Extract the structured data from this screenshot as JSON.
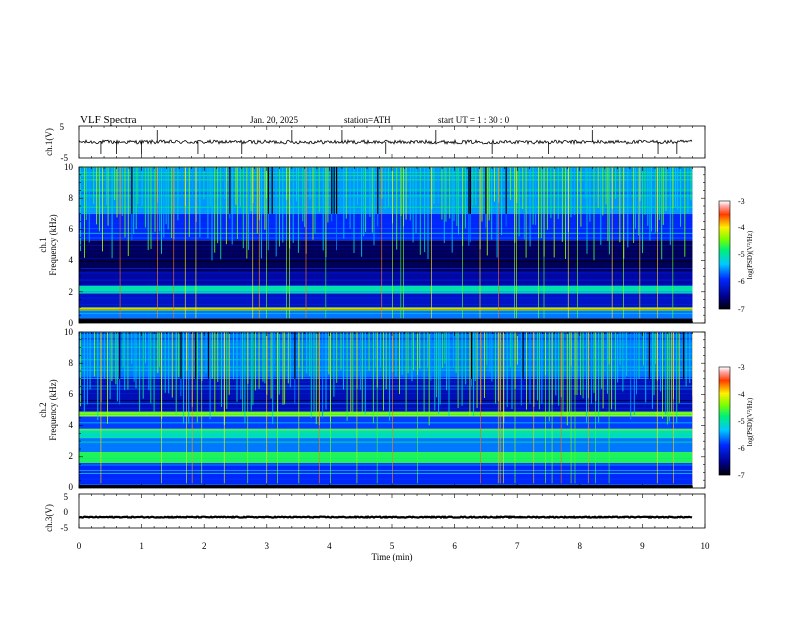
{
  "header": {
    "title": "VLF  Spectra",
    "date": "Jan. 20, 2025",
    "station": "station=ATH",
    "start_ut": "start  UT  =   1 : 30 : 0"
  },
  "chart_data": [
    {
      "type": "line",
      "id": "ch1-waveform",
      "ylabel": "ch.1(V)",
      "ylim": [
        -5,
        5
      ],
      "yticks": [
        "5",
        "-5"
      ],
      "xlim": [
        0,
        10
      ],
      "x_end": 9.8,
      "baseline": 0,
      "noise_amplitude": 0.6,
      "spikes": [
        0.35,
        0.6,
        1.0,
        1.25,
        1.9,
        2.6,
        3.4,
        4.2,
        4.9,
        5.7,
        6.6,
        7.5,
        8.2,
        9.25,
        9.55
      ],
      "color": "#000000"
    },
    {
      "type": "heatmap",
      "id": "ch1-spectrogram",
      "ylabel_top": "ch.1",
      "ylabel": "Frequency  (kHz)",
      "ylim": [
        0,
        10
      ],
      "yticks": [
        "0",
        "2",
        "4",
        "6",
        "8",
        "10"
      ],
      "xlim": [
        0,
        10
      ],
      "x_end": 9.8,
      "colorbar_label": "log(PSD)(V²/Hz)",
      "colorbar_range": [
        -7,
        -3
      ],
      "colorbar_ticks": [
        "-3",
        "-4",
        "-5",
        "-6",
        "-7"
      ],
      "band_levels": [
        {
          "f": [
            0.0,
            0.3
          ],
          "v": -7.0
        },
        {
          "f": [
            0.3,
            0.8
          ],
          "v": -5.6
        },
        {
          "f": [
            0.8,
            1.0
          ],
          "v": -4.3
        },
        {
          "f": [
            1.0,
            1.9
          ],
          "v": -6.2
        },
        {
          "f": [
            1.9,
            2.4
          ],
          "v": -5.0
        },
        {
          "f": [
            2.4,
            3.3
          ],
          "v": -6.4
        },
        {
          "f": [
            3.3,
            5.3
          ],
          "v": -6.7
        },
        {
          "f": [
            5.3,
            7.0
          ],
          "v": -5.9
        },
        {
          "f": [
            7.0,
            10.0
          ],
          "v": -5.5
        }
      ]
    },
    {
      "type": "heatmap",
      "id": "ch2-spectrogram",
      "ylabel_top": "ch.2",
      "ylabel": "Frequency  (kHz)",
      "ylim": [
        0,
        10
      ],
      "yticks": [
        "0",
        "2",
        "4",
        "6",
        "8",
        "10"
      ],
      "xlim": [
        0,
        10
      ],
      "x_end": 9.8,
      "colorbar_label": "log(PSD)(V²/Hz)",
      "colorbar_range": [
        -7,
        -3
      ],
      "colorbar_ticks": [
        "-3",
        "-4",
        "-5",
        "-6",
        "-7"
      ],
      "band_levels": [
        {
          "f": [
            0.0,
            0.2
          ],
          "v": -7.0
        },
        {
          "f": [
            0.2,
            1.6
          ],
          "v": -5.9
        },
        {
          "f": [
            1.6,
            2.3
          ],
          "v": -4.7
        },
        {
          "f": [
            2.3,
            3.2
          ],
          "v": -5.6
        },
        {
          "f": [
            3.2,
            3.8
          ],
          "v": -5.0
        },
        {
          "f": [
            3.8,
            4.6
          ],
          "v": -5.8
        },
        {
          "f": [
            4.6,
            4.9
          ],
          "v": -4.6
        },
        {
          "f": [
            4.9,
            7.0
          ],
          "v": -6.3
        },
        {
          "f": [
            7.0,
            10.0
          ],
          "v": -5.6
        }
      ]
    },
    {
      "type": "line",
      "id": "ch3-waveform",
      "ylabel": "ch.3(V)",
      "ylim": [
        -5,
        5
      ],
      "yticks": [
        "5",
        "0",
        "-5"
      ],
      "xlim": [
        0,
        10
      ],
      "x_end": 9.8,
      "baseline": -1.8,
      "noise_amplitude": 0.15,
      "color": "#000000"
    }
  ],
  "x_axis": {
    "label": "Time  (min)",
    "ticks": [
      "0",
      "1",
      "2",
      "3",
      "4",
      "5",
      "6",
      "7",
      "8",
      "9",
      "10"
    ]
  }
}
